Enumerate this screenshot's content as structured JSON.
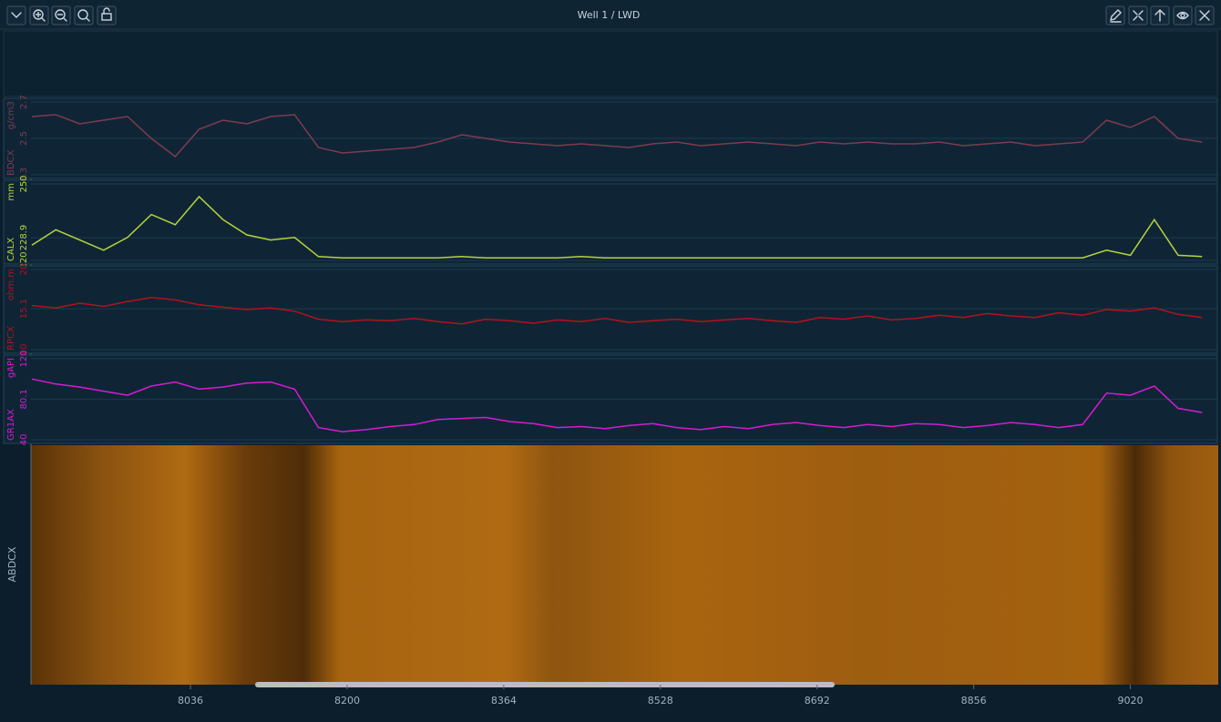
{
  "window": {
    "title": "Well 1 / LWD"
  },
  "depth_axis": {
    "x": [
      7870,
      7895,
      7920,
      7945,
      7970,
      7995,
      8020,
      8045,
      8070,
      8095,
      8120,
      8145,
      8170,
      8195,
      8220,
      8245,
      8270,
      8295,
      8320,
      8345,
      8370,
      8395,
      8420,
      8445,
      8470,
      8495,
      8520,
      8545,
      8570,
      8595,
      8620,
      8645,
      8670,
      8695,
      8720,
      8745,
      8770,
      8795,
      8820,
      8845,
      8870,
      8895,
      8920,
      8945,
      8970,
      8995,
      9020,
      9045,
      9070,
      9095
    ],
    "xlim": [
      7869,
      9112
    ],
    "xticks": [
      8036,
      8200,
      8364,
      8528,
      8692,
      8856,
      9020
    ]
  },
  "chart_data": [
    {
      "type": "line",
      "name": "BDCX",
      "unit": "g/cm3",
      "color": "#7e3b4e",
      "ylim": [
        2.3,
        2.7
      ],
      "yticks": [
        2.3,
        2.5,
        2.7
      ],
      "values": [
        2.62,
        2.63,
        2.58,
        2.6,
        2.62,
        2.5,
        2.4,
        2.55,
        2.6,
        2.58,
        2.62,
        2.63,
        2.45,
        2.42,
        2.43,
        2.44,
        2.45,
        2.48,
        2.52,
        2.5,
        2.48,
        2.47,
        2.46,
        2.47,
        2.46,
        2.45,
        2.47,
        2.48,
        2.46,
        2.47,
        2.48,
        2.47,
        2.46,
        2.48,
        2.47,
        2.48,
        2.47,
        2.47,
        2.48,
        2.46,
        2.47,
        2.48,
        2.46,
        2.47,
        2.48,
        2.6,
        2.56,
        2.62,
        2.5,
        2.48
      ]
    },
    {
      "type": "line",
      "name": "CALX",
      "unit": "mm",
      "color": "#b6d43a",
      "ylim": [
        220,
        250
      ],
      "yticks": [
        220,
        228.9,
        250
      ],
      "values": [
        226,
        232,
        228,
        224,
        229,
        238,
        234,
        245,
        236,
        230,
        228,
        229,
        221.5,
        221,
        221,
        221,
        221,
        221,
        221.5,
        221,
        221,
        221,
        221,
        221.5,
        221,
        221,
        221,
        221,
        221,
        221,
        221,
        221,
        221,
        221,
        221,
        221,
        221,
        221,
        221,
        221,
        221,
        221,
        221,
        221,
        221,
        224,
        222,
        236,
        222,
        221.5
      ]
    },
    {
      "type": "line",
      "name": "RPCX",
      "unit": "ohm.m",
      "color": "#b3121c",
      "ylim": [
        10,
        20
      ],
      "yticks": [
        10,
        15.1,
        20
      ],
      "values": [
        15.5,
        15.2,
        15.8,
        15.4,
        16,
        16.5,
        16.2,
        15.6,
        15.3,
        15,
        15.2,
        14.8,
        13.8,
        13.5,
        13.7,
        13.6,
        13.9,
        13.5,
        13.2,
        13.8,
        13.6,
        13.3,
        13.7,
        13.5,
        13.9,
        13.4,
        13.6,
        13.8,
        13.5,
        13.7,
        13.9,
        13.6,
        13.4,
        14,
        13.8,
        14.2,
        13.7,
        13.9,
        14.3,
        14,
        14.5,
        14.2,
        14,
        14.6,
        14.3,
        15,
        14.8,
        15.2,
        14.4,
        14
      ]
    },
    {
      "type": "line",
      "name": "GR1AX",
      "unit": "gAPI",
      "color": "#d61bd2",
      "ylim": [
        40,
        120
      ],
      "yticks": [
        40,
        80.1,
        120
      ],
      "values": [
        100,
        95,
        92,
        88,
        84,
        93,
        97,
        90,
        92,
        96,
        97,
        90,
        52,
        48,
        50,
        53,
        55,
        60,
        61,
        62,
        58,
        56,
        52,
        53,
        51,
        54,
        56,
        52,
        50,
        53,
        51,
        55,
        57,
        54,
        52,
        55,
        53,
        56,
        55,
        52,
        54,
        57,
        55,
        52,
        55,
        86,
        84,
        93,
        71,
        67
      ]
    }
  ],
  "image_track": {
    "name": "ABDCX"
  }
}
